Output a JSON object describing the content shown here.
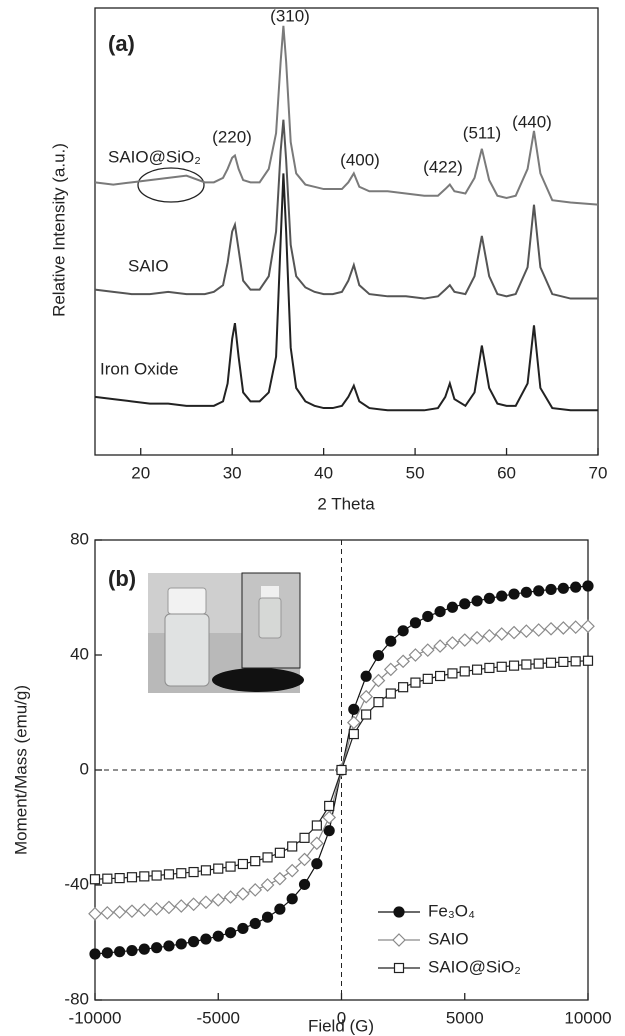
{
  "chart_data": [
    {
      "type": "line",
      "x_label": "2 Theta",
      "y_label": "Relative Intensity (a.u.)",
      "xlim": [
        15,
        70
      ],
      "xticks": [
        20,
        30,
        40,
        50,
        60,
        70
      ],
      "ylim": [
        0,
        100
      ],
      "annotations": [
        "(a)",
        "(220)",
        "(310)",
        "(400)",
        "(422)",
        "(511)",
        "(440)"
      ],
      "x": [
        15,
        17,
        19,
        21,
        23,
        25,
        27,
        28,
        29,
        29.5,
        30,
        30.3,
        30.7,
        31.2,
        32,
        33,
        34,
        34.8,
        35.3,
        35.6,
        35.9,
        36.4,
        37,
        38,
        39,
        40,
        41,
        42,
        42.7,
        43.3,
        43.9,
        45,
        47,
        49,
        51,
        52.5,
        53.3,
        53.8,
        54.3,
        55.5,
        56.5,
        57.3,
        58.1,
        59,
        60,
        61,
        62.3,
        63,
        63.7,
        65,
        67,
        70
      ],
      "series": [
        {
          "name": "SAIO@SiO₂",
          "color": "#7a7a7a",
          "values": [
            61,
            60.5,
            61,
            61.5,
            62,
            62.5,
            61,
            61,
            62,
            64,
            66.5,
            67,
            64,
            61.5,
            61,
            61,
            64,
            72,
            88,
            96,
            88,
            70,
            63,
            60.5,
            60,
            59.5,
            59.5,
            59.5,
            61,
            63,
            60,
            59,
            59,
            58.5,
            58,
            58,
            59.5,
            60.5,
            59,
            58.5,
            62,
            68.5,
            61.5,
            58,
            57.5,
            58,
            64,
            72.5,
            63,
            57,
            56.5,
            56
          ]
        },
        {
          "name": "SAIO",
          "color": "#555555",
          "values": [
            37,
            36.5,
            36,
            36,
            36.5,
            36,
            36,
            36.5,
            38,
            43,
            50,
            51.5,
            46,
            39,
            37,
            37,
            40,
            50,
            68,
            75,
            66,
            47,
            40,
            37.5,
            36.5,
            36,
            36,
            36.5,
            39,
            42.5,
            38,
            36,
            35.5,
            35.5,
            35,
            35.5,
            37,
            38,
            36.5,
            36,
            40,
            49,
            40,
            36,
            35.5,
            36,
            42,
            56,
            42,
            36,
            35,
            35
          ]
        },
        {
          "name": "Iron Oxide",
          "color": "#222222",
          "values": [
            13,
            12.5,
            12,
            11.5,
            11.5,
            11,
            11,
            11,
            12,
            16,
            26,
            29.5,
            22,
            14,
            12,
            12,
            14,
            22,
            48,
            63,
            50,
            24,
            15,
            12,
            11,
            10.5,
            10.5,
            11,
            13,
            15.5,
            12,
            10.5,
            10,
            10,
            10,
            10.5,
            13,
            16,
            12.5,
            11,
            14,
            24.5,
            15,
            11.5,
            11,
            11,
            16,
            29,
            15,
            10.5,
            10,
            10
          ]
        }
      ]
    },
    {
      "type": "line",
      "x_label": "Field (G)",
      "y_label": "Moment/Mass (emu/g)",
      "xlim": [
        -10000,
        10000
      ],
      "xticks": [
        -10000,
        -5000,
        0,
        5000,
        10000
      ],
      "ylim": [
        -80,
        80
      ],
      "yticks": [
        -80,
        -40,
        0,
        40,
        80
      ],
      "zero_lines": true,
      "legend": "lower right",
      "annotations": [
        "(b)"
      ],
      "x": [
        -10000,
        -9500,
        -9000,
        -8500,
        -8000,
        -7500,
        -7000,
        -6500,
        -6000,
        -5500,
        -5000,
        -4500,
        -4000,
        -3500,
        -3000,
        -2500,
        -2000,
        -1500,
        -1000,
        -500,
        0,
        500,
        1000,
        1500,
        2000,
        2500,
        3000,
        3500,
        4000,
        4500,
        5000,
        5500,
        6000,
        6500,
        7000,
        7500,
        8000,
        8500,
        9000,
        9500,
        10000
      ],
      "series": [
        {
          "name": "Fe₃O₄",
          "color": "#111111",
          "marker": "circle",
          "marker_fill": "filled",
          "values": [
            -64,
            -63.6,
            -63.2,
            -62.8,
            -62.3,
            -61.8,
            -61.2,
            -60.5,
            -59.7,
            -58.8,
            -57.8,
            -56.6,
            -55.1,
            -53.4,
            -51.2,
            -48.4,
            -44.8,
            -39.8,
            -32.6,
            -21.1,
            0,
            21.1,
            32.6,
            39.8,
            44.8,
            48.4,
            51.2,
            53.4,
            55.1,
            56.6,
            57.8,
            58.8,
            59.7,
            60.5,
            61.2,
            61.8,
            62.3,
            62.8,
            63.2,
            63.6,
            64
          ]
        },
        {
          "name": "SAIO",
          "color": "#8a8a8a",
          "marker": "diamond",
          "marker_fill": "open",
          "values": [
            -50,
            -49.7,
            -49.4,
            -49.1,
            -48.7,
            -48.3,
            -47.8,
            -47.3,
            -46.7,
            -46,
            -45.2,
            -44.2,
            -43.1,
            -41.7,
            -40,
            -37.8,
            -35,
            -31.1,
            -25.5,
            -16.5,
            0,
            16.5,
            25.5,
            31.1,
            35,
            37.8,
            40,
            41.7,
            43.1,
            44.2,
            45.2,
            46,
            46.7,
            47.3,
            47.8,
            48.3,
            48.7,
            49.1,
            49.4,
            49.7,
            50
          ]
        },
        {
          "name": "SAIO@SiO₂",
          "color": "#222222",
          "marker": "square",
          "marker_fill": "open",
          "values": [
            -38,
            -37.8,
            -37.6,
            -37.3,
            -37,
            -36.7,
            -36.3,
            -35.9,
            -35.5,
            -34.9,
            -34.3,
            -33.6,
            -32.7,
            -31.7,
            -30.4,
            -28.8,
            -26.6,
            -23.6,
            -19.3,
            -12.5,
            0,
            12.5,
            19.3,
            23.6,
            26.6,
            28.8,
            30.4,
            31.7,
            32.7,
            33.6,
            34.3,
            34.9,
            35.5,
            35.9,
            36.3,
            36.7,
            37,
            37.3,
            37.6,
            37.8,
            38
          ]
        }
      ]
    }
  ]
}
